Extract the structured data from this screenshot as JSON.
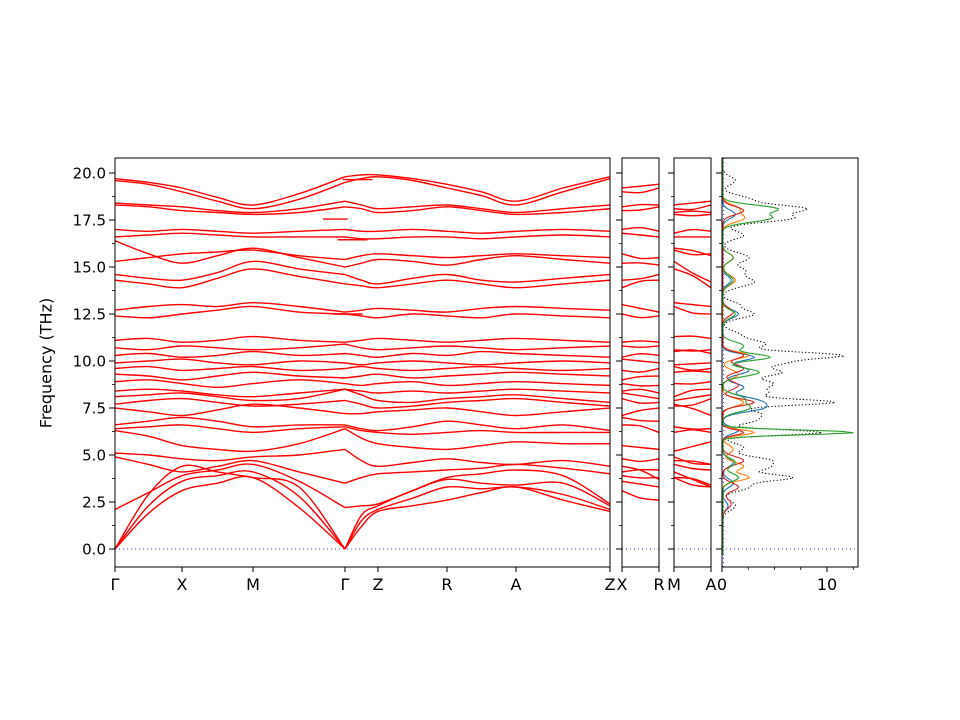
{
  "figure": {
    "background": "#ffffff"
  },
  "chart_data": {
    "type": "line",
    "description": "phonon-band-structure-with-dos",
    "ylabel": "Frequency (THz)",
    "ylim": [
      -0.96,
      20.8
    ],
    "yticks": [
      0.0,
      2.5,
      5.0,
      7.5,
      10.0,
      12.5,
      15.0,
      17.5,
      20.0
    ],
    "ytick_labels": [
      "0.0",
      "2.5",
      "5.0",
      "7.5",
      "10.0",
      "12.5",
      "15.0",
      "17.5",
      "20.0"
    ],
    "minor_ytick_step": 1.25,
    "band_color": "#ff0000",
    "zero_line_color": "#0000ff",
    "axis_color": "#000000",
    "panels": {
      "main": {
        "kpoint_labels": [
          "Γ",
          "X",
          "M",
          "Γ",
          "Z",
          "R",
          "A",
          "Z"
        ],
        "kpoint_fractions": [
          0,
          0.1354,
          0.2788,
          0.4646,
          0.5313,
          0.6707,
          0.8101,
          1.0
        ]
      },
      "xr": {
        "kpoint_labels": [
          "X",
          "R"
        ]
      },
      "ma": {
        "kpoint_labels": [
          "M",
          "A"
        ]
      },
      "dos": {
        "xticks": [
          0,
          10
        ],
        "xtick_labels": [
          "0",
          "10"
        ],
        "minor_xtick_step": 2.5,
        "xlim": [
          0,
          12.9
        ]
      }
    },
    "bands": [
      [
        0.0,
        1.9,
        3.1,
        3.5,
        3.8,
        2.2,
        0.0,
        1.2,
        2.0,
        2.3,
        2.6,
        3.0,
        3.3,
        2.6,
        2.0
      ],
      [
        0.0,
        2.3,
        3.6,
        3.9,
        4.1,
        2.8,
        0.0,
        1.5,
        2.1,
        2.7,
        3.3,
        3.2,
        3.3,
        2.9,
        2.1
      ],
      [
        0.0,
        2.9,
        4.4,
        4.1,
        3.8,
        3.3,
        0.0,
        1.8,
        2.3,
        3.1,
        3.7,
        3.5,
        3.4,
        3.5,
        2.3
      ],
      [
        2.1,
        3.0,
        3.9,
        4.2,
        4.5,
        3.6,
        2.2,
        2.3,
        2.4,
        3.1,
        3.8,
        4.0,
        4.2,
        3.9,
        2.4
      ],
      [
        4.9,
        4.5,
        4.1,
        4.4,
        4.7,
        4.1,
        3.5,
        3.8,
        4.0,
        4.1,
        4.2,
        4.3,
        4.5,
        4.3,
        4.0
      ],
      [
        5.1,
        5.0,
        4.8,
        4.7,
        4.9,
        5.0,
        5.3,
        4.7,
        4.4,
        4.6,
        4.8,
        4.6,
        4.5,
        4.7,
        4.4
      ],
      [
        6.3,
        6.0,
        5.5,
        5.3,
        5.2,
        5.6,
        6.4,
        5.9,
        5.6,
        5.4,
        5.3,
        5.5,
        5.7,
        5.6,
        5.6
      ],
      [
        6.4,
        6.5,
        6.6,
        6.4,
        6.2,
        6.4,
        6.5,
        6.3,
        6.2,
        6.1,
        6.2,
        6.3,
        6.2,
        6.2,
        6.2
      ],
      [
        6.6,
        6.8,
        7.0,
        6.8,
        6.5,
        6.6,
        6.6,
        6.4,
        6.3,
        6.5,
        6.8,
        6.6,
        6.4,
        6.6,
        6.3
      ],
      [
        7.5,
        7.3,
        7.1,
        7.4,
        7.7,
        7.5,
        7.2,
        7.2,
        7.3,
        7.4,
        7.5,
        7.3,
        7.1,
        7.3,
        7.5
      ],
      [
        7.7,
        7.9,
        8.0,
        7.8,
        7.6,
        7.7,
        7.9,
        7.7,
        7.5,
        7.6,
        7.8,
        7.9,
        8.0,
        7.8,
        7.6
      ],
      [
        8.1,
        8.2,
        8.3,
        8.1,
        7.9,
        8.0,
        8.5,
        8.2,
        7.9,
        7.8,
        8.0,
        8.1,
        8.2,
        8.0,
        7.8
      ],
      [
        8.4,
        8.5,
        8.4,
        8.2,
        8.1,
        8.3,
        8.5,
        8.4,
        8.3,
        8.4,
        8.3,
        8.4,
        8.5,
        8.4,
        8.3
      ],
      [
        8.9,
        9.0,
        8.8,
        8.6,
        8.8,
        9.0,
        8.8,
        8.7,
        8.8,
        8.9,
        8.7,
        8.8,
        8.9,
        8.8,
        8.7
      ],
      [
        9.3,
        9.2,
        9.0,
        9.2,
        9.4,
        9.2,
        9.1,
        9.2,
        9.3,
        9.1,
        9.2,
        9.3,
        9.4,
        9.3,
        9.2
      ],
      [
        9.6,
        9.7,
        9.5,
        9.6,
        9.7,
        9.5,
        9.6,
        9.7,
        9.6,
        9.5,
        9.6,
        9.7,
        9.6,
        9.5,
        9.6
      ],
      [
        9.9,
        10.0,
        10.1,
        9.9,
        9.8,
        10.0,
        9.9,
        9.8,
        9.9,
        10.0,
        9.9,
        9.8,
        9.9,
        10.0,
        9.9
      ],
      [
        10.3,
        10.4,
        10.2,
        10.3,
        10.5,
        10.3,
        10.4,
        10.3,
        10.2,
        10.4,
        10.3,
        10.5,
        10.4,
        10.3,
        10.2
      ],
      [
        10.7,
        10.6,
        10.8,
        10.7,
        10.6,
        10.7,
        10.9,
        10.7,
        10.6,
        10.7,
        10.8,
        10.7,
        10.6,
        10.7,
        10.8
      ],
      [
        11.1,
        11.2,
        11.0,
        11.1,
        11.3,
        11.1,
        11.0,
        11.1,
        11.2,
        11.1,
        11.0,
        11.1,
        11.2,
        11.1,
        11.0
      ],
      [
        12.4,
        12.3,
        12.5,
        12.7,
        12.9,
        12.6,
        12.5,
        12.4,
        12.3,
        12.5,
        12.4,
        12.3,
        12.5,
        12.4,
        12.3
      ],
      [
        12.7,
        12.9,
        13.0,
        12.9,
        13.1,
        12.9,
        12.6,
        12.7,
        12.8,
        12.7,
        12.6,
        12.8,
        12.9,
        12.8,
        12.7
      ],
      [
        14.3,
        14.1,
        13.9,
        14.4,
        14.9,
        14.5,
        14.1,
        14.0,
        13.9,
        14.1,
        14.3,
        14.1,
        13.9,
        14.1,
        14.3
      ],
      [
        14.6,
        14.4,
        14.3,
        14.7,
        15.3,
        14.9,
        14.6,
        14.3,
        14.1,
        14.4,
        14.6,
        14.3,
        14.2,
        14.4,
        14.6
      ],
      [
        16.4,
        15.7,
        15.2,
        15.6,
        16.0,
        15.5,
        15.0,
        15.2,
        15.4,
        15.3,
        15.1,
        15.4,
        15.6,
        15.4,
        15.2
      ],
      [
        15.3,
        15.5,
        15.7,
        15.8,
        15.9,
        15.6,
        15.4,
        15.6,
        15.7,
        15.6,
        15.5,
        15.6,
        15.7,
        15.6,
        15.5
      ],
      [
        16.6,
        16.7,
        16.8,
        16.7,
        16.6,
        16.6,
        16.6,
        16.5,
        16.5,
        16.6,
        16.6,
        16.5,
        16.6,
        16.7,
        16.6
      ],
      [
        17.0,
        16.9,
        17.0,
        16.9,
        16.8,
        16.9,
        17.0,
        16.9,
        16.9,
        17.0,
        16.9,
        16.8,
        16.9,
        17.0,
        16.9
      ],
      [
        18.3,
        18.2,
        18.0,
        17.9,
        17.8,
        17.9,
        18.2,
        18.1,
        17.9,
        18.0,
        18.2,
        18.0,
        17.8,
        17.9,
        18.1
      ],
      [
        18.4,
        18.3,
        18.2,
        18.0,
        17.9,
        18.1,
        18.5,
        18.3,
        18.1,
        18.2,
        18.3,
        18.1,
        17.9,
        18.1,
        18.3
      ],
      [
        19.6,
        19.4,
        19.0,
        18.5,
        18.1,
        18.6,
        19.5,
        19.7,
        19.8,
        19.6,
        19.2,
        18.8,
        18.3,
        19.0,
        19.7
      ],
      [
        19.7,
        19.5,
        19.2,
        18.7,
        18.3,
        18.9,
        19.8,
        19.9,
        19.9,
        19.7,
        19.4,
        19.0,
        18.5,
        19.2,
        19.8
      ]
    ],
    "lo_to_segments": [
      [
        0.44,
        0.5,
        12.5
      ],
      [
        0.45,
        0.51,
        16.45
      ],
      [
        0.42,
        0.47,
        17.55
      ],
      [
        0.46,
        0.52,
        19.65
      ]
    ],
    "dos_curves": [
      {
        "name": "total-dos",
        "color": "#000000",
        "line_style": "dotted",
        "peaks": [
          [
            2.3,
            1.2,
            0.35
          ],
          [
            3.3,
            2.5,
            0.3
          ],
          [
            3.8,
            6.5,
            0.25
          ],
          [
            4.3,
            3.5,
            0.25
          ],
          [
            4.7,
            4.5,
            0.3
          ],
          [
            5.4,
            2.0,
            0.3
          ],
          [
            6.2,
            9.5,
            0.2
          ],
          [
            6.8,
            2.5,
            0.25
          ],
          [
            7.2,
            3.5,
            0.3
          ],
          [
            7.8,
            10.5,
            0.22
          ],
          [
            8.3,
            4.0,
            0.3
          ],
          [
            8.8,
            4.5,
            0.3
          ],
          [
            9.4,
            5.5,
            0.3
          ],
          [
            9.9,
            5.0,
            0.25
          ],
          [
            10.3,
            11.0,
            0.25
          ],
          [
            10.9,
            4.0,
            0.3
          ],
          [
            11.4,
            1.5,
            0.3
          ],
          [
            12.5,
            3.0,
            0.3
          ],
          [
            13.0,
            1.5,
            0.25
          ],
          [
            14.2,
            3.0,
            0.35
          ],
          [
            14.8,
            2.0,
            0.3
          ],
          [
            15.5,
            2.5,
            0.35
          ],
          [
            16.7,
            2.0,
            0.3
          ],
          [
            17.6,
            6.5,
            0.3
          ],
          [
            18.1,
            7.5,
            0.28
          ],
          [
            18.6,
            2.5,
            0.3
          ],
          [
            19.6,
            1.2,
            0.3
          ]
        ]
      },
      {
        "name": "pdos-blue",
        "color": "#1f77b4",
        "line_style": "solid",
        "peaks": [
          [
            2.3,
            0.5,
            0.3
          ],
          [
            3.5,
            1.0,
            0.3
          ],
          [
            4.6,
            1.0,
            0.3
          ],
          [
            6.3,
            1.5,
            0.25
          ],
          [
            7.5,
            3.5,
            0.3
          ],
          [
            7.9,
            3.0,
            0.3
          ],
          [
            8.6,
            2.0,
            0.3
          ],
          [
            9.5,
            2.5,
            0.3
          ],
          [
            10.2,
            3.0,
            0.25
          ],
          [
            12.5,
            1.5,
            0.3
          ],
          [
            14.3,
            0.8,
            0.3
          ],
          [
            17.8,
            1.2,
            0.3
          ]
        ]
      },
      {
        "name": "pdos-orange",
        "color": "#ff7f0e",
        "line_style": "solid",
        "peaks": [
          [
            3.8,
            2.5,
            0.25
          ],
          [
            4.4,
            2.0,
            0.3
          ],
          [
            5.3,
            1.0,
            0.3
          ],
          [
            6.2,
            3.0,
            0.2
          ],
          [
            7.8,
            2.0,
            0.3
          ],
          [
            9.3,
            1.5,
            0.3
          ],
          [
            10.3,
            2.5,
            0.25
          ],
          [
            14.3,
            1.2,
            0.35
          ],
          [
            15.5,
            1.0,
            0.3
          ],
          [
            17.6,
            2.0,
            0.3
          ],
          [
            18.1,
            1.5,
            0.3
          ]
        ]
      },
      {
        "name": "pdos-red",
        "color": "#d62728",
        "line_style": "solid",
        "peaks": [
          [
            2.4,
            0.8,
            0.35
          ],
          [
            3.3,
            1.5,
            0.3
          ],
          [
            4.7,
            2.0,
            0.3
          ],
          [
            6.2,
            2.0,
            0.2
          ],
          [
            7.8,
            3.0,
            0.25
          ],
          [
            8.7,
            1.5,
            0.3
          ],
          [
            9.6,
            2.0,
            0.3
          ],
          [
            10.3,
            2.0,
            0.25
          ],
          [
            12.6,
            1.0,
            0.3
          ],
          [
            18.0,
            2.0,
            0.3
          ]
        ]
      },
      {
        "name": "pdos-green",
        "color": "#2ca02c",
        "line_style": "solid",
        "peaks": [
          [
            3.8,
            1.5,
            0.3
          ],
          [
            4.6,
            1.2,
            0.3
          ],
          [
            6.2,
            12.6,
            0.18
          ],
          [
            7.5,
            2.5,
            0.3
          ],
          [
            8.0,
            2.0,
            0.3
          ],
          [
            9.4,
            3.5,
            0.3
          ],
          [
            10.2,
            4.5,
            0.25
          ],
          [
            10.8,
            2.0,
            0.3
          ],
          [
            12.5,
            1.2,
            0.3
          ],
          [
            14.3,
            1.0,
            0.35
          ],
          [
            15.5,
            1.0,
            0.3
          ],
          [
            17.6,
            4.5,
            0.3
          ],
          [
            18.1,
            5.0,
            0.28
          ]
        ]
      }
    ]
  }
}
